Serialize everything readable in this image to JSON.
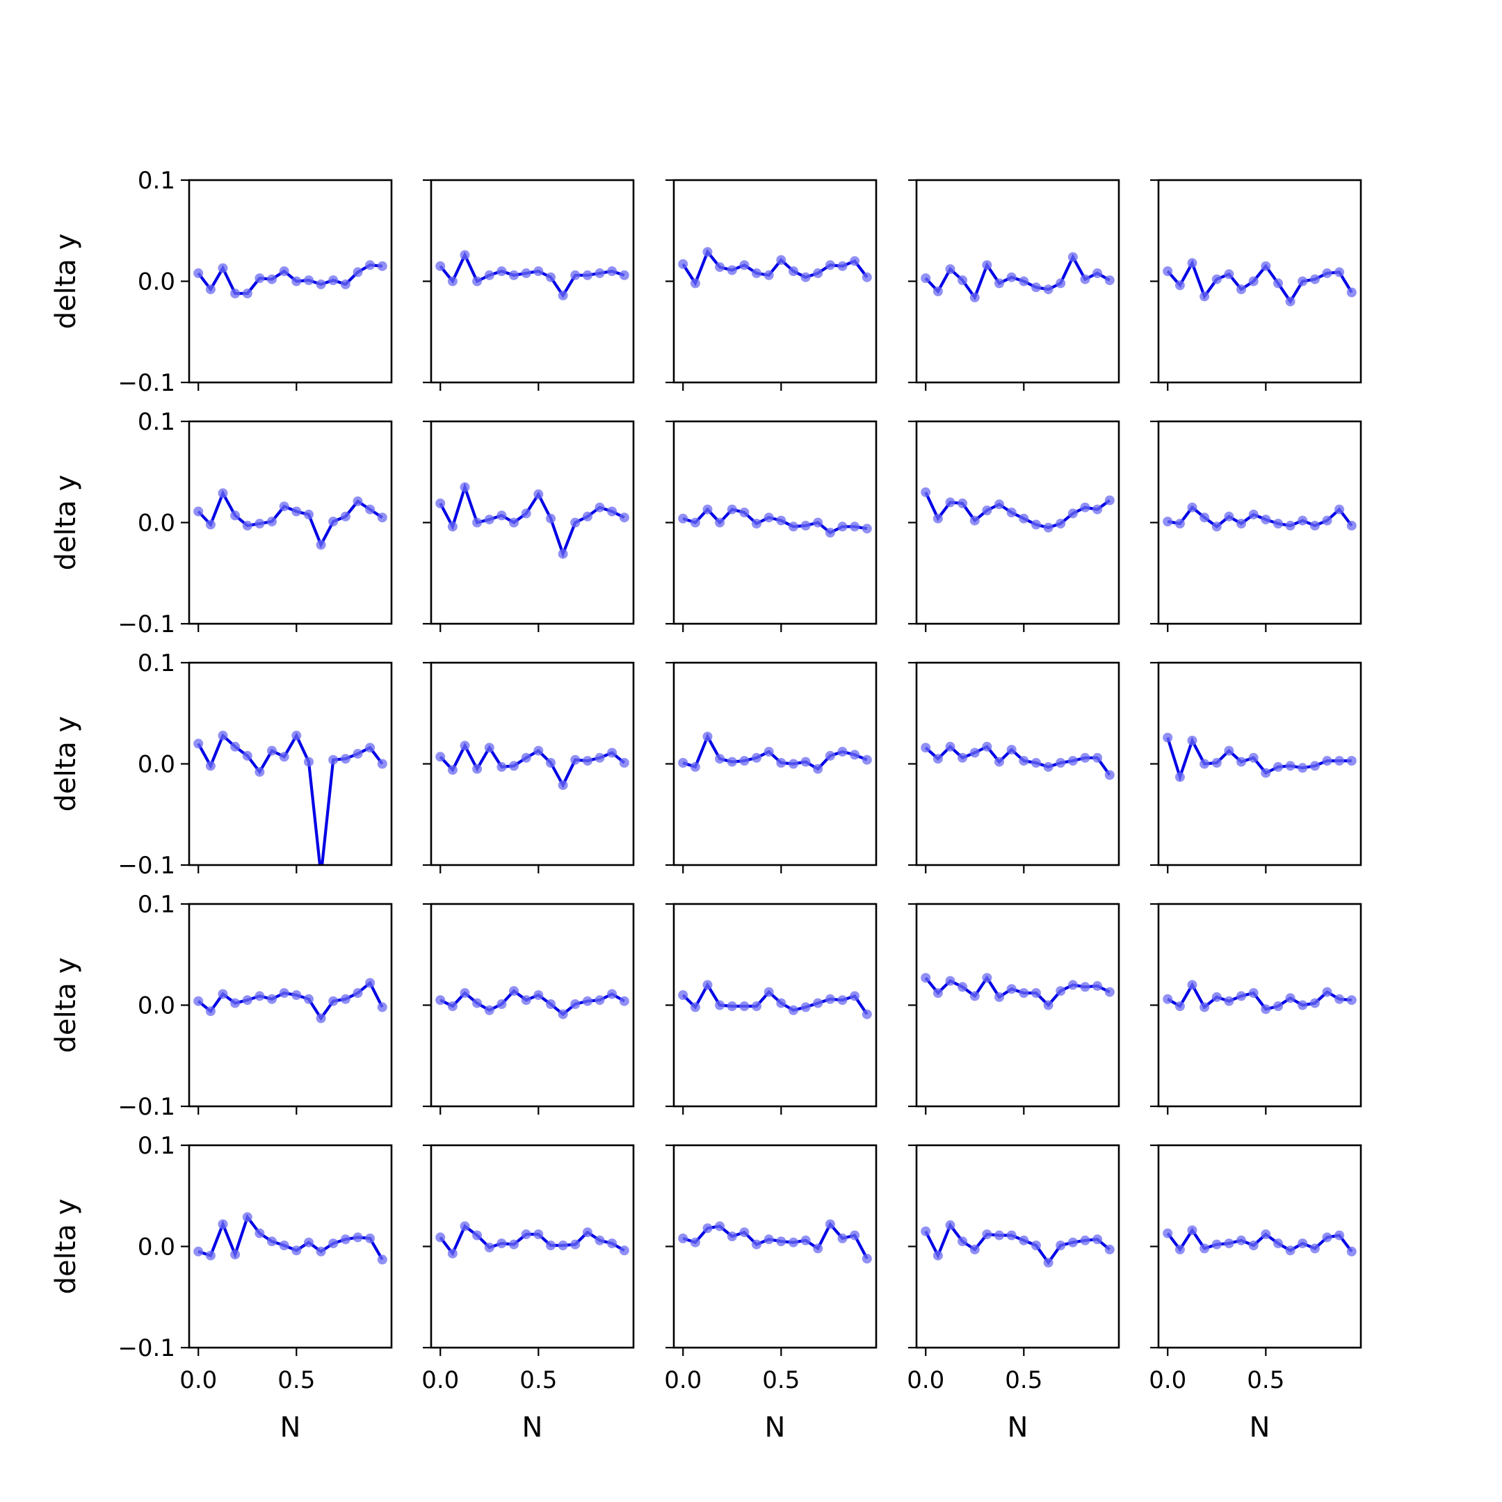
{
  "chart_data": {
    "type": "line",
    "layout": {
      "rows": 5,
      "cols": 5,
      "sharex": true,
      "sharey": true
    },
    "x": [
      0,
      0.0625,
      0.125,
      0.1875,
      0.25,
      0.3125,
      0.375,
      0.4375,
      0.5,
      0.5625,
      0.625,
      0.6875,
      0.75,
      0.8125,
      0.875,
      0.9375
    ],
    "xlim": [
      -0.0469,
      0.9844
    ],
    "ylim": [
      -0.1,
      0.1
    ],
    "xticks": [
      0.0,
      0.5
    ],
    "xtick_labels": [
      "0.0",
      "0.5"
    ],
    "yticks": [
      0.1,
      0.0,
      -0.1
    ],
    "ytick_labels": [
      "0.1",
      "0.0",
      "−0.1"
    ],
    "xlabel": "N",
    "ylabel": "delta y",
    "line_color": "#0000e6",
    "marker_color": "#6b6bf2",
    "panels": [
      {
        "values": [
          0.008,
          -0.008,
          0.013,
          -0.012,
          -0.012,
          0.003,
          0.002,
          0.01,
          0.0,
          0.001,
          -0.003,
          0.001,
          -0.003,
          0.009,
          0.016,
          0.015
        ]
      },
      {
        "values": [
          0.015,
          0.0,
          0.026,
          0.0,
          0.006,
          0.01,
          0.006,
          0.008,
          0.01,
          0.004,
          -0.014,
          0.006,
          0.006,
          0.008,
          0.01,
          0.006
        ]
      },
      {
        "values": [
          0.017,
          -0.002,
          0.029,
          0.014,
          0.011,
          0.016,
          0.008,
          0.006,
          0.021,
          0.01,
          0.004,
          0.008,
          0.016,
          0.015,
          0.02,
          0.004
        ]
      },
      {
        "values": [
          0.003,
          -0.01,
          0.012,
          0.001,
          -0.016,
          0.016,
          -0.002,
          0.004,
          0.0,
          -0.006,
          -0.008,
          -0.002,
          0.024,
          0.002,
          0.008,
          0.001
        ]
      },
      {
        "values": [
          0.01,
          -0.004,
          0.018,
          -0.015,
          0.002,
          0.007,
          -0.008,
          0.0,
          0.015,
          -0.002,
          -0.02,
          0.0,
          0.002,
          0.008,
          0.009,
          -0.011
        ]
      },
      {
        "values": [
          0.011,
          -0.002,
          0.029,
          0.007,
          -0.003,
          -0.001,
          0.001,
          0.016,
          0.011,
          0.008,
          -0.022,
          0.001,
          0.006,
          0.021,
          0.013,
          0.005
        ]
      },
      {
        "values": [
          0.019,
          -0.004,
          0.035,
          0.0,
          0.003,
          0.007,
          0.0,
          0.009,
          0.028,
          0.004,
          -0.031,
          0.0,
          0.006,
          0.015,
          0.011,
          0.005
        ]
      },
      {
        "values": [
          0.004,
          0.0,
          0.013,
          0.0,
          0.013,
          0.01,
          -0.001,
          0.005,
          0.002,
          -0.004,
          -0.003,
          0.0,
          -0.01,
          -0.004,
          -0.004,
          -0.006
        ]
      },
      {
        "values": [
          0.03,
          0.004,
          0.02,
          0.019,
          0.002,
          0.012,
          0.018,
          0.01,
          0.004,
          -0.002,
          -0.005,
          -0.001,
          0.009,
          0.015,
          0.013,
          0.022
        ]
      },
      {
        "values": [
          0.001,
          -0.001,
          0.015,
          0.005,
          -0.004,
          0.006,
          -0.001,
          0.008,
          0.003,
          -0.001,
          -0.003,
          0.002,
          -0.003,
          0.002,
          0.013,
          -0.003
        ]
      },
      {
        "values": [
          0.02,
          -0.002,
          0.028,
          0.017,
          0.008,
          -0.008,
          0.013,
          0.007,
          0.028,
          0.002,
          -0.11,
          0.004,
          0.005,
          0.01,
          0.016,
          0.0
        ]
      },
      {
        "values": [
          0.007,
          -0.006,
          0.018,
          -0.005,
          0.016,
          -0.003,
          -0.002,
          0.006,
          0.013,
          0.001,
          -0.021,
          0.004,
          0.003,
          0.006,
          0.011,
          0.001
        ]
      },
      {
        "values": [
          0.001,
          -0.003,
          0.027,
          0.005,
          0.002,
          0.003,
          0.006,
          0.012,
          0.001,
          0.0,
          0.002,
          -0.005,
          0.008,
          0.012,
          0.009,
          0.004
        ]
      },
      {
        "values": [
          0.016,
          0.005,
          0.017,
          0.006,
          0.011,
          0.017,
          0.002,
          0.014,
          0.003,
          0.001,
          -0.003,
          0.001,
          0.003,
          0.006,
          0.006,
          -0.011
        ]
      },
      {
        "values": [
          0.026,
          -0.013,
          0.023,
          0.0,
          0.001,
          0.013,
          0.002,
          0.006,
          -0.009,
          -0.003,
          -0.002,
          -0.004,
          -0.002,
          0.003,
          0.003,
          0.003
        ]
      },
      {
        "values": [
          0.004,
          -0.006,
          0.011,
          0.002,
          0.005,
          0.009,
          0.006,
          0.012,
          0.01,
          0.006,
          -0.013,
          0.004,
          0.006,
          0.012,
          0.022,
          -0.002
        ]
      },
      {
        "values": [
          0.005,
          -0.001,
          0.012,
          0.002,
          -0.005,
          0.001,
          0.014,
          0.005,
          0.01,
          0.001,
          -0.009,
          0.001,
          0.004,
          0.005,
          0.011,
          0.004
        ]
      },
      {
        "values": [
          0.01,
          -0.002,
          0.02,
          0.0,
          -0.001,
          -0.001,
          -0.001,
          0.013,
          0.002,
          -0.005,
          -0.002,
          0.002,
          0.006,
          0.005,
          0.009,
          -0.009
        ]
      },
      {
        "values": [
          0.027,
          0.012,
          0.024,
          0.018,
          0.009,
          0.027,
          0.008,
          0.016,
          0.012,
          0.012,
          0.0,
          0.014,
          0.02,
          0.018,
          0.019,
          0.013
        ]
      },
      {
        "values": [
          0.006,
          -0.001,
          0.02,
          -0.002,
          0.008,
          0.004,
          0.009,
          0.012,
          -0.004,
          -0.001,
          0.007,
          0.0,
          0.002,
          0.013,
          0.006,
          0.005
        ]
      },
      {
        "values": [
          -0.005,
          -0.009,
          0.022,
          -0.008,
          0.029,
          0.013,
          0.005,
          0.001,
          -0.004,
          0.004,
          -0.005,
          0.003,
          0.007,
          0.009,
          0.008,
          -0.013
        ]
      },
      {
        "values": [
          0.009,
          -0.007,
          0.02,
          0.011,
          -0.001,
          0.003,
          0.002,
          0.012,
          0.012,
          0.001,
          0.001,
          0.002,
          0.014,
          0.006,
          0.003,
          -0.004
        ]
      },
      {
        "values": [
          0.008,
          0.004,
          0.018,
          0.02,
          0.01,
          0.014,
          0.002,
          0.007,
          0.005,
          0.004,
          0.006,
          -0.002,
          0.022,
          0.008,
          0.011,
          -0.012
        ]
      },
      {
        "values": [
          0.015,
          -0.009,
          0.021,
          0.005,
          -0.003,
          0.012,
          0.011,
          0.011,
          0.006,
          0.001,
          -0.016,
          0.001,
          0.004,
          0.006,
          0.007,
          -0.003
        ]
      },
      {
        "values": [
          0.013,
          -0.003,
          0.016,
          -0.002,
          0.002,
          0.003,
          0.006,
          0.001,
          0.012,
          0.003,
          -0.004,
          0.003,
          -0.002,
          0.009,
          0.011,
          -0.005
        ]
      }
    ]
  }
}
